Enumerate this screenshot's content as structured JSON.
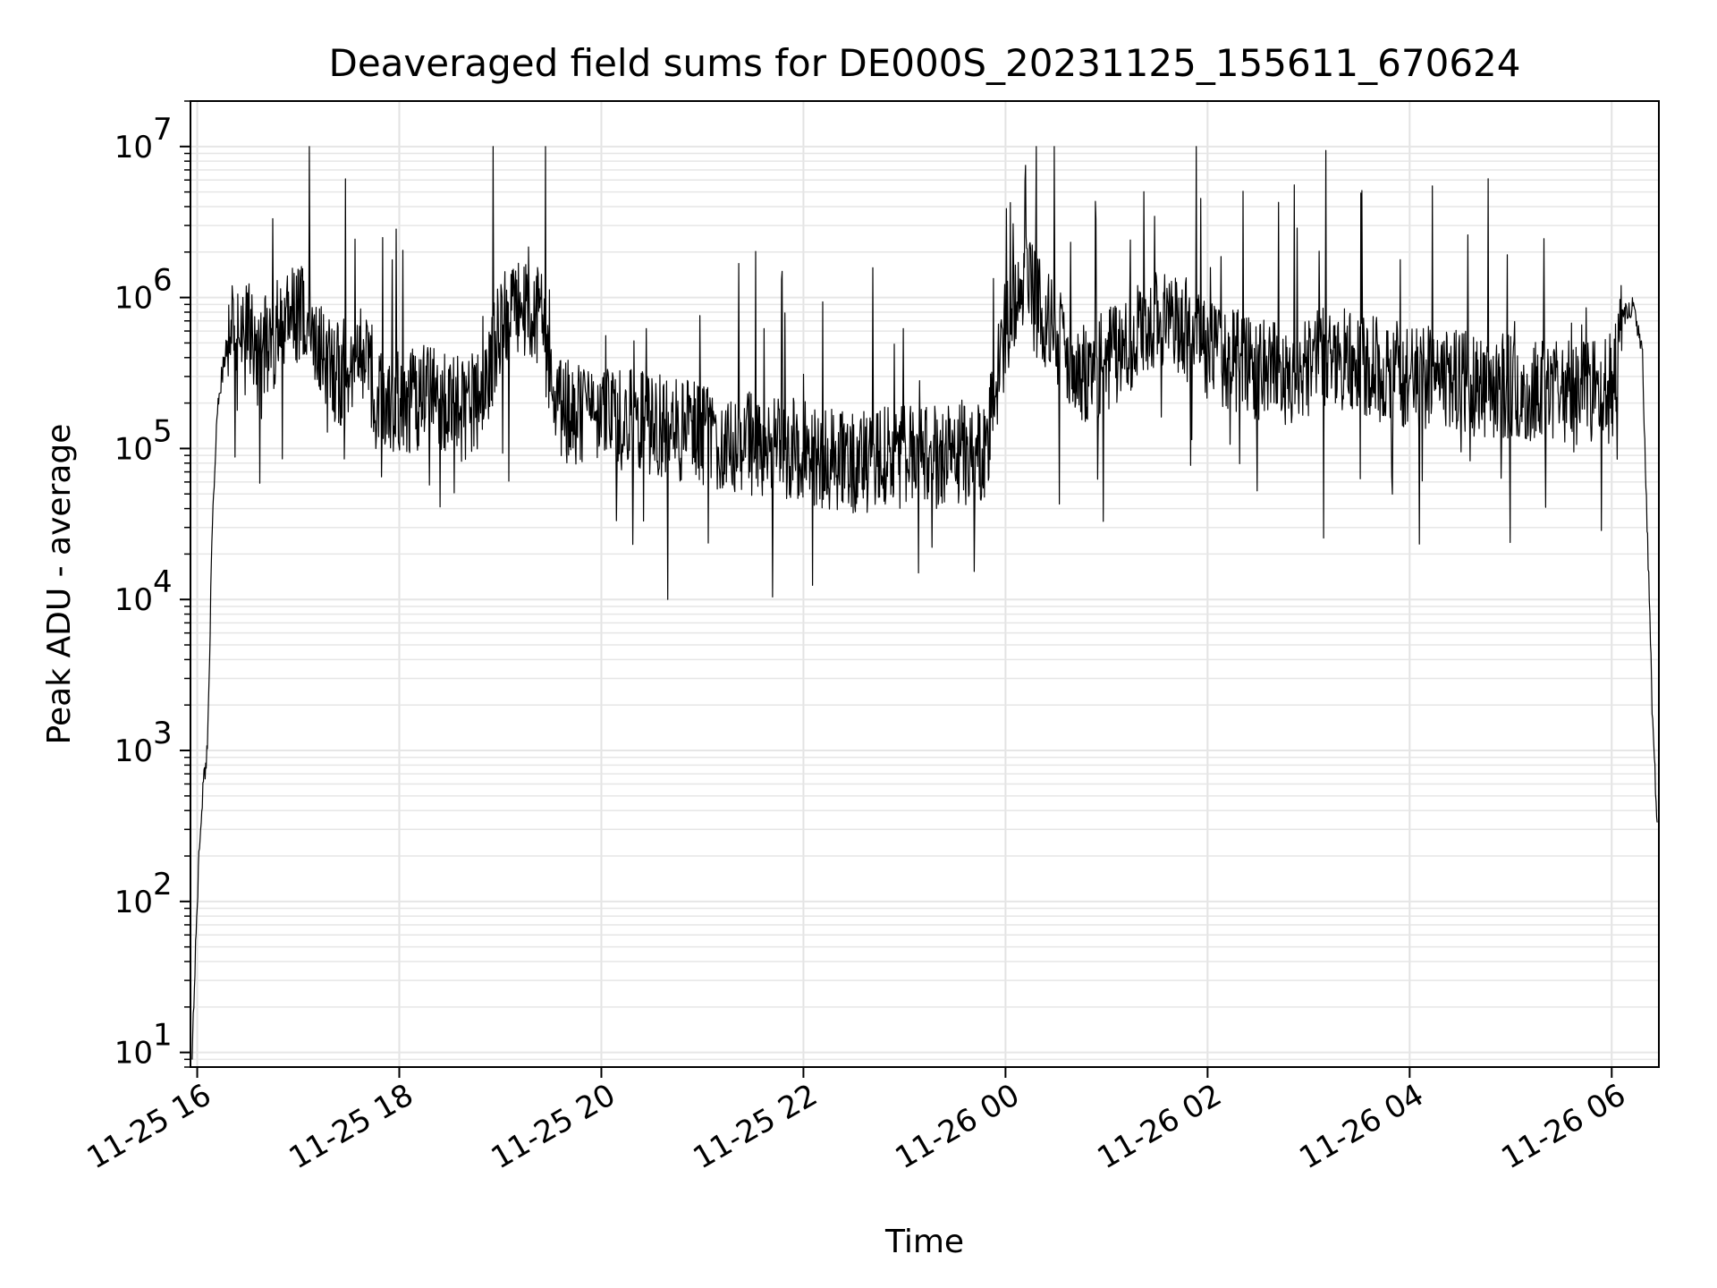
{
  "chart_data": {
    "type": "line",
    "title": "Deaveraged field sums for DE000S_20231125_155611_670624",
    "xlabel": "Time",
    "ylabel": "Peak ADU - average",
    "x_ticks": [
      "11-25 16",
      "11-25 18",
      "11-25 20",
      "11-25 22",
      "11-26 00",
      "11-26 02",
      "11-26 04",
      "11-26 06"
    ],
    "xlim": [
      "11-25 15:56",
      "11-26 06:28"
    ],
    "y_scale": "log",
    "ylim": [
      8,
      20000000
    ],
    "y_ticks": [
      10,
      100,
      1000,
      10000,
      100000,
      1000000,
      10000000
    ],
    "y_tick_labels": [
      {
        "base": "10",
        "exp": "1"
      },
      {
        "base": "10",
        "exp": "2"
      },
      {
        "base": "10",
        "exp": "3"
      },
      {
        "base": "10",
        "exp": "4"
      },
      {
        "base": "10",
        "exp": "5"
      },
      {
        "base": "10",
        "exp": "6"
      },
      {
        "base": "10",
        "exp": "7"
      }
    ],
    "grid": true,
    "line_color": "#000000",
    "series": [
      {
        "x_hours_from_1600": [
          -0.05,
          0.0,
          0.03,
          0.06,
          0.1,
          0.15,
          0.2,
          0.3,
          0.45,
          0.6,
          0.8,
          1.0,
          1.2,
          1.4,
          1.6,
          1.8,
          2.0,
          2.2,
          2.4,
          2.6,
          2.8,
          3.0,
          3.2,
          3.4,
          3.6,
          3.8,
          4.0,
          4.3,
          4.6,
          5.0,
          5.4,
          5.8,
          6.2,
          6.6,
          7.0,
          7.4,
          7.8,
          8.0,
          8.2,
          8.4,
          8.8,
          9.2,
          9.6,
          10.0,
          10.4,
          10.8,
          11.2,
          11.6,
          12.0,
          12.4,
          12.8,
          13.2,
          13.6,
          14.0,
          14.1,
          14.2,
          14.3,
          14.4,
          14.45
        ],
        "values": [
          10,
          100,
          300,
          600,
          1000,
          30000,
          200000,
          500000,
          700000,
          400000,
          600000,
          800000,
          500000,
          300000,
          400000,
          250000,
          200000,
          220000,
          200000,
          180000,
          200000,
          650000,
          900000,
          700000,
          180000,
          160000,
          170000,
          150000,
          140000,
          120000,
          110000,
          100000,
          90000,
          80000,
          90000,
          85000,
          100000,
          600000,
          1200000,
          700000,
          300000,
          500000,
          800000,
          450000,
          350000,
          300000,
          400000,
          350000,
          300000,
          280000,
          260000,
          250000,
          230000,
          240000,
          700000,
          900000,
          500000,
          2000,
          300
        ]
      }
    ]
  }
}
